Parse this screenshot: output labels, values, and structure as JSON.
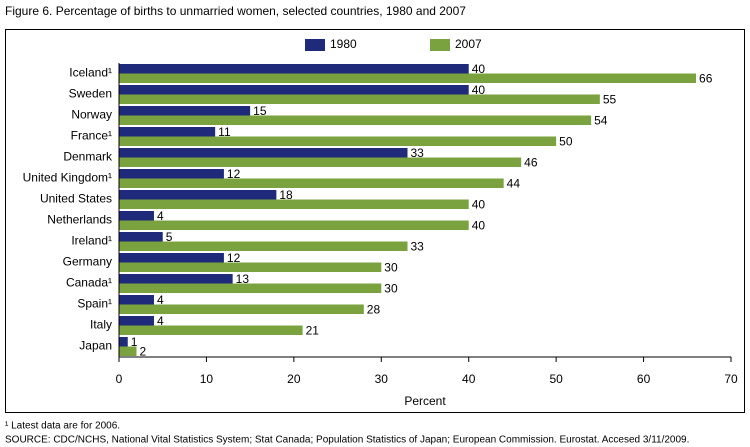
{
  "chart_data": {
    "type": "hbar",
    "title": "Figure 6.  Percentage of births to unmarried women, selected countries, 1980 and 2007",
    "categories": [
      "Iceland¹",
      "Sweden",
      "Norway",
      "France¹",
      "Denmark",
      "United Kingdom¹",
      "United States",
      "Netherlands",
      "Ireland¹",
      "Germany",
      "Canada¹",
      "Spain¹",
      "Italy",
      "Japan"
    ],
    "series": [
      {
        "name": "1980",
        "color": "#1f2a7a",
        "values": [
          40,
          40,
          15,
          11,
          33,
          12,
          18,
          4,
          5,
          12,
          13,
          4,
          4,
          1
        ]
      },
      {
        "name": "2007",
        "color": "#7aa33f",
        "values": [
          66,
          55,
          54,
          50,
          46,
          44,
          40,
          40,
          33,
          30,
          30,
          28,
          21,
          2
        ]
      }
    ],
    "xlim": [
      0,
      70
    ],
    "xticks": [
      0,
      10,
      20,
      30,
      40,
      50,
      60,
      70
    ],
    "xlabel": "Percent",
    "footnote": "¹ Latest data are for 2006.",
    "source": "SOURCE: CDC/NCHS, National Vital Statistics System; Stat Canada; Population Statistics of Japan; European Commission.  Eurostat.  Accesed 3/11/2009."
  }
}
